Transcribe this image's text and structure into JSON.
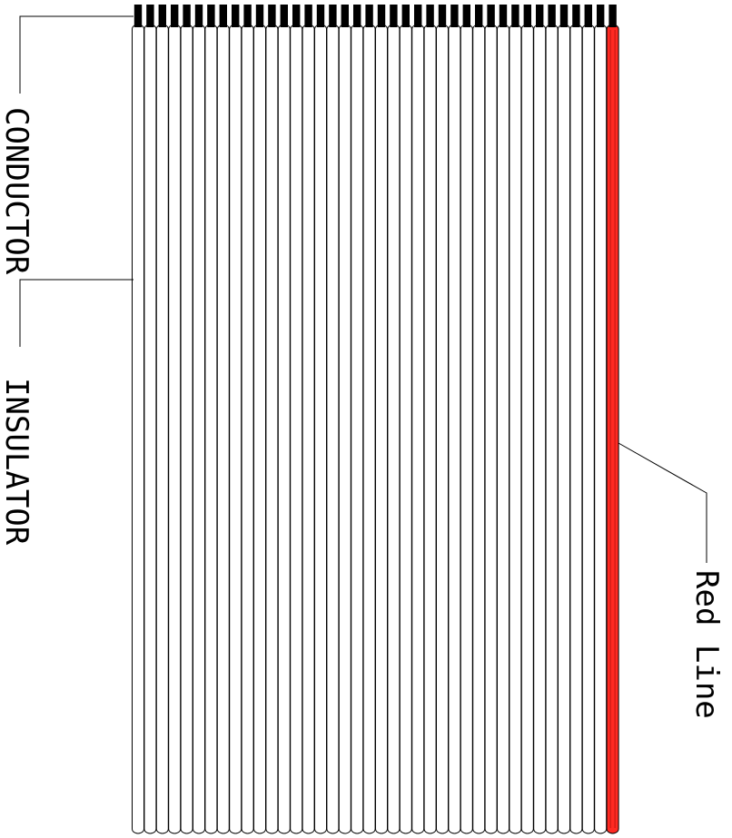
{
  "labels": {
    "conductor": "CONDUCTOR",
    "insulator": "INSULATOR",
    "red_line": "Red Line"
  },
  "cable": {
    "wire_count": 40,
    "marked_wire": "last",
    "colors": {
      "insulator_fill": "#ffffff",
      "outline": "#000000",
      "conductor": "#000000",
      "red_line": "#ff2a22"
    }
  }
}
